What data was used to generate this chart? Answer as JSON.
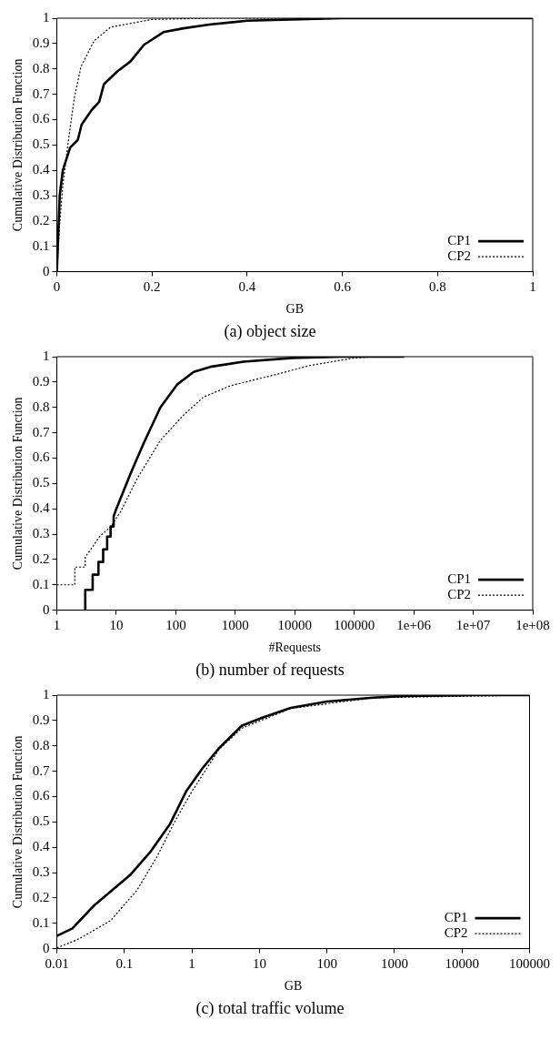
{
  "chart_data": [
    {
      "type": "line",
      "title": "(a) object size",
      "xlabel": "GB",
      "ylabel": "Cumulative Distribution Function",
      "xlim": [
        0,
        1
      ],
      "xticks": [
        0,
        0.2,
        0.4,
        0.6,
        0.8,
        1
      ],
      "ylim": [
        0,
        1
      ],
      "yticks": [
        0,
        0.1,
        0.2,
        0.3,
        0.4,
        0.5,
        0.6,
        0.7,
        0.8,
        0.9,
        1
      ],
      "grid": false,
      "legend": "bottom right",
      "series": [
        {
          "name": "CP1",
          "color": "#000000",
          "line_style": "solid",
          "x": [
            0,
            0.006,
            0.0125,
            0.028,
            0.044,
            0.052,
            0.072,
            0.089,
            0.099,
            0.127,
            0.155,
            0.183,
            0.224,
            0.266,
            0.32,
            0.4,
            0.6,
            1
          ],
          "values": [
            0,
            0.3,
            0.4,
            0.49,
            0.52,
            0.58,
            0.635,
            0.67,
            0.74,
            0.79,
            0.83,
            0.895,
            0.945,
            0.96,
            0.975,
            0.99,
            1,
            1
          ]
        },
        {
          "name": "CP2",
          "color": "#000000",
          "line_style": "dotted",
          "x": [
            0,
            0.006,
            0.0125,
            0.023,
            0.037,
            0.051,
            0.078,
            0.113,
            0.2,
            0.32,
            1
          ],
          "values": [
            0,
            0.19,
            0.34,
            0.5,
            0.69,
            0.81,
            0.91,
            0.965,
            0.995,
            1,
            1
          ]
        }
      ]
    },
    {
      "type": "line",
      "title": "(b) number of requests",
      "xlabel": "#Requests",
      "ylabel": "Cumulative Distribution Function",
      "log": "x",
      "xlim": [
        1,
        100000000
      ],
      "xticks": [
        1,
        10,
        100,
        1000,
        10000,
        100000,
        {
          "value": 1000000,
          "label": "1e+06"
        },
        {
          "value": 10000000,
          "label": "1e+07"
        },
        {
          "value": 100000000,
          "label": "1e+08"
        }
      ],
      "ylim": [
        0,
        1
      ],
      "yticks": [
        0,
        0.1,
        0.2,
        0.3,
        0.4,
        0.5,
        0.6,
        0.7,
        0.8,
        0.9,
        1
      ],
      "grid": false,
      "legend": "bottom right",
      "series": [
        {
          "name": "CP1",
          "color": "#000000",
          "line_style": "solid",
          "x": [
            3,
            3,
            4,
            4,
            5,
            5,
            6,
            6,
            7,
            7,
            8,
            8,
            9,
            9,
            10,
            17.4,
            29,
            55,
            105,
            200,
            380,
            1370,
            9300,
            63000,
            690000
          ],
          "values": [
            0,
            0.08,
            0.08,
            0.14,
            0.14,
            0.19,
            0.19,
            0.24,
            0.24,
            0.29,
            0.29,
            0.33,
            0.33,
            0.37,
            0.4,
            0.54,
            0.66,
            0.8,
            0.89,
            0.94,
            0.96,
            0.98,
            0.995,
            1,
            1
          ]
        },
        {
          "name": "CP2",
          "color": "#000000",
          "line_style": "dotted",
          "x": [
            1,
            2,
            2,
            3,
            3,
            4,
            5.2,
            8.1,
            11.9,
            22.5,
            55,
            135,
            290,
            820,
            4900,
            17700,
            100000,
            230000
          ],
          "values": [
            0.1,
            0.1,
            0.17,
            0.17,
            0.21,
            0.25,
            0.29,
            0.33,
            0.39,
            0.52,
            0.67,
            0.77,
            0.84,
            0.885,
            0.93,
            0.965,
            0.995,
            1
          ]
        }
      ]
    },
    {
      "type": "line",
      "title": "(c) total traffic volume",
      "xlabel": "GB",
      "ylabel": "Cumulative Distribution Function",
      "log": "x",
      "xlim": [
        0.01,
        100000
      ],
      "xticks": [
        0.01,
        0.1,
        1,
        10,
        100,
        1000,
        10000,
        100000
      ],
      "ylim": [
        0,
        1
      ],
      "yticks": [
        0,
        0.1,
        0.2,
        0.3,
        0.4,
        0.5,
        0.6,
        0.7,
        0.8,
        0.9,
        1
      ],
      "grid": false,
      "legend": "bottom right",
      "series": [
        {
          "name": "CP1",
          "color": "#000000",
          "line_style": "solid",
          "x": [
            0.01,
            0.017,
            0.0355,
            0.121,
            0.24,
            0.47,
            0.82,
            1.42,
            2.5,
            5.5,
            10.8,
            29,
            100,
            480,
            1500,
            14000,
            100000
          ],
          "values": [
            0.05,
            0.08,
            0.17,
            0.29,
            0.38,
            0.49,
            0.62,
            0.71,
            0.79,
            0.88,
            0.91,
            0.95,
            0.975,
            0.99,
            0.997,
            1,
            1
          ]
        },
        {
          "name": "CP2",
          "color": "#000000",
          "line_style": "dotted",
          "x": [
            0.01,
            0.02,
            0.062,
            0.153,
            0.3,
            0.58,
            1,
            2.5,
            5.5,
            29,
            480,
            100000
          ],
          "values": [
            0.003,
            0.035,
            0.11,
            0.23,
            0.36,
            0.51,
            0.62,
            0.785,
            0.87,
            0.947,
            0.99,
            1
          ]
        }
      ]
    }
  ]
}
